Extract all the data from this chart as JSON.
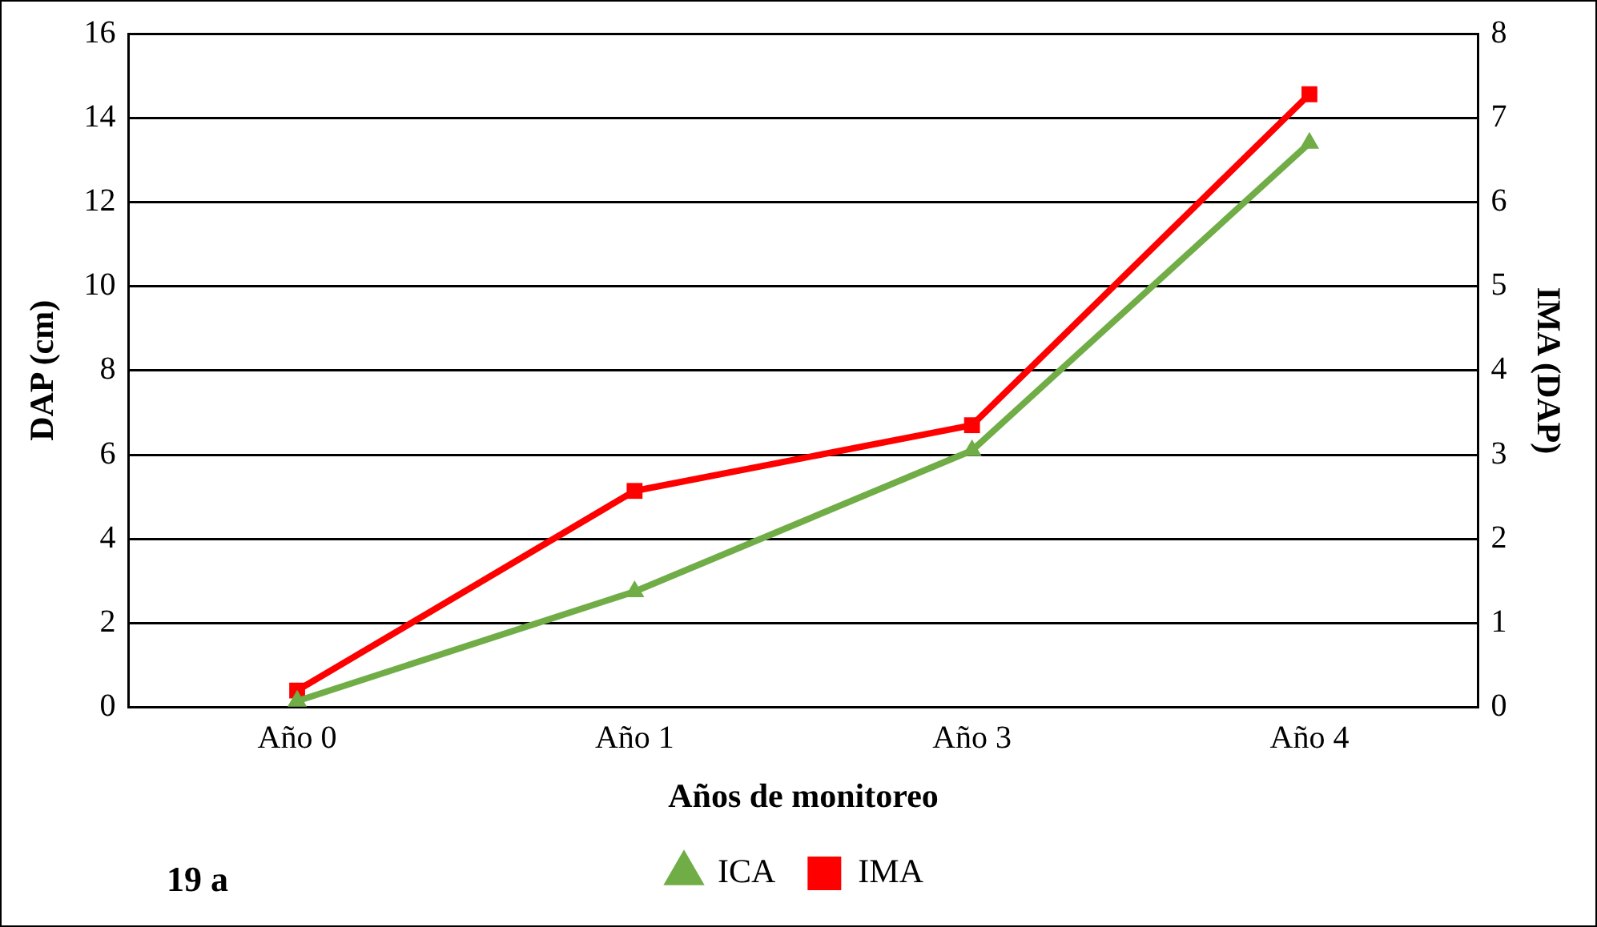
{
  "chart_data": {
    "type": "line",
    "xlabel": "Años de monitoreo",
    "ylabel": "DAP (cm)",
    "y2label": "IMA (DAP)",
    "categories": [
      "Año 0",
      "Año 1",
      "Año 3",
      "Año 4"
    ],
    "series": [
      {
        "name": "ICA",
        "color": "#70ad47",
        "marker": "triangle",
        "values": [
          0.15,
          2.75,
          6.1,
          13.4
        ]
      },
      {
        "name": "IMA",
        "color": "#ff0000",
        "marker": "square",
        "axis": "y2",
        "values": [
          0.2,
          2.57,
          3.35,
          7.28
        ]
      }
    ],
    "ylim": [
      0,
      16
    ],
    "yticks": [
      0,
      2,
      4,
      6,
      8,
      10,
      12,
      14,
      16
    ],
    "y2lim": [
      0,
      8
    ],
    "y2ticks": [
      0,
      1,
      2,
      3,
      4,
      5,
      6,
      7,
      8
    ],
    "grid": "y",
    "legend": "bottom",
    "annotations": [
      "19 a"
    ]
  }
}
